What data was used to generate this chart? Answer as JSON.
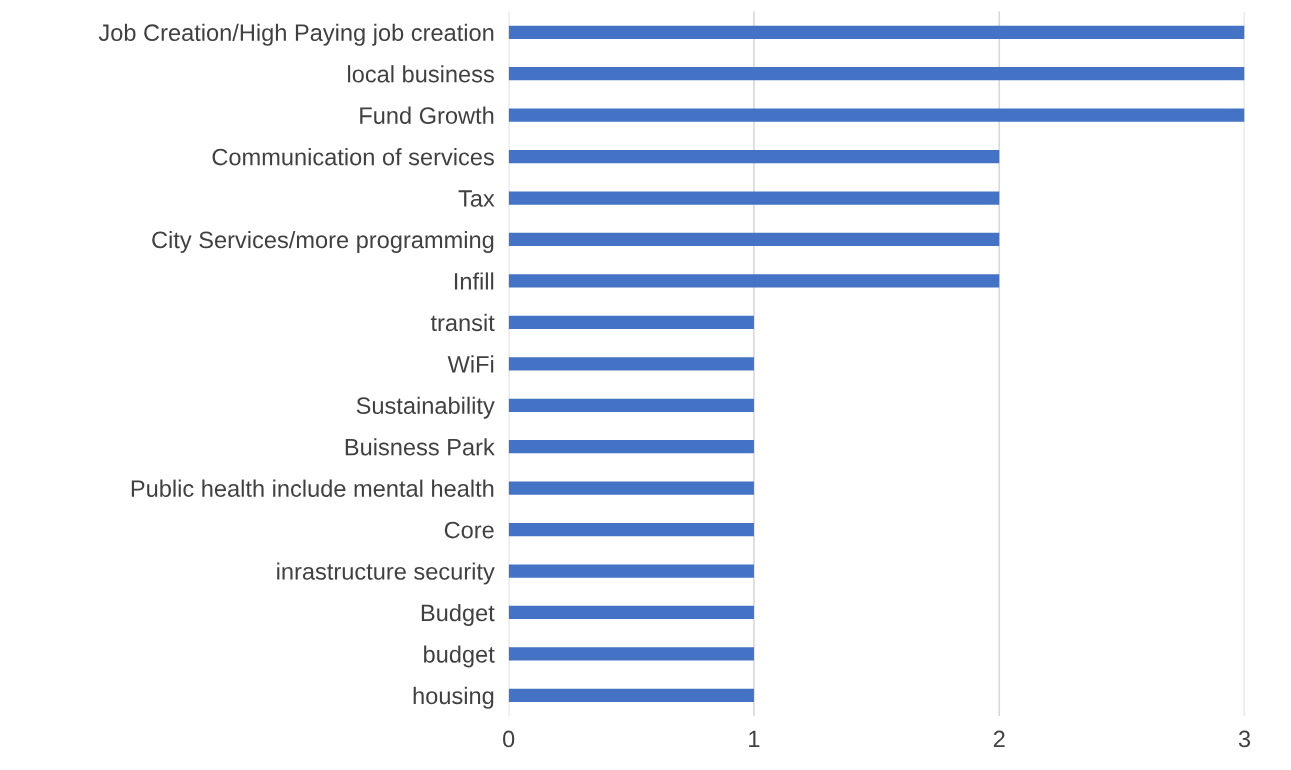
{
  "chart_data": {
    "type": "bar",
    "orientation": "horizontal",
    "categories": [
      "Job Creation/High Paying job creation",
      "local business",
      "Fund Growth",
      "Communication of services",
      "Tax",
      "City Services/more programming",
      "Infill",
      "transit",
      "WiFi",
      "Sustainability",
      "Buisness Park",
      "Public health include mental health",
      "Core",
      "inrastructure security",
      "Budget",
      "budget",
      "housing"
    ],
    "values": [
      3,
      3,
      3,
      2,
      2,
      2,
      2,
      1,
      1,
      1,
      1,
      1,
      1,
      1,
      1,
      1,
      1
    ],
    "color": "#4472c4",
    "xlim": [
      0,
      3
    ],
    "xticks": [
      0,
      1,
      2,
      3
    ],
    "grid": "x"
  }
}
